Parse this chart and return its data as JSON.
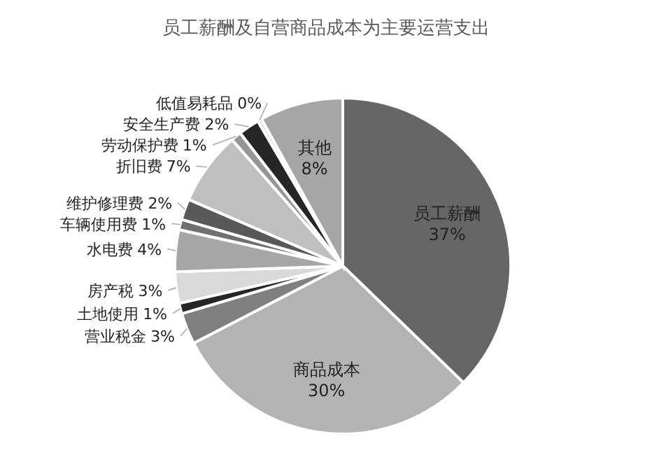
{
  "chart_data": {
    "type": "pie",
    "title": "员工薪酬及自营商品成本为主要运营支出",
    "categories": [
      "员工薪酬",
      "商品成本",
      "营业税金",
      "土地使用",
      "房产税",
      "水电费",
      "车辆使用费",
      "维护修理费",
      "折旧费",
      "劳动保护费",
      "安全生产费",
      "低值易耗品",
      "其他"
    ],
    "values": [
      37,
      30,
      3,
      1,
      3,
      4,
      1,
      2,
      7,
      1,
      2,
      0.4,
      8
    ],
    "value_labels": [
      "37%",
      "30%",
      "3%",
      "1%",
      "3%",
      "4%",
      "1%",
      "2%",
      "7%",
      "1%",
      "2%",
      "0%",
      "8%"
    ],
    "colors": [
      "#666666",
      "#b3b3b3",
      "#808080",
      "#262626",
      "#d9d9d9",
      "#a6a6a6",
      "#707070",
      "#595959",
      "#bfbfbf",
      "#969696",
      "#262626",
      "#e0e0e0",
      "#a6a6a6"
    ]
  }
}
